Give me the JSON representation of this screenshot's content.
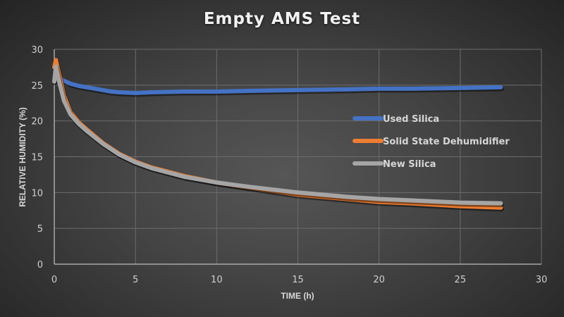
{
  "chart_data": {
    "type": "line",
    "title": "Empty AMS Test",
    "xlabel": "TIME (h)",
    "ylabel": "RELATIVE HUMIDITY (%)",
    "xlim": [
      0,
      30
    ],
    "ylim": [
      0,
      30
    ],
    "xticks": [
      0,
      5,
      10,
      15,
      20,
      25,
      30
    ],
    "yticks": [
      0,
      5,
      10,
      15,
      20,
      25,
      30
    ],
    "grid": true,
    "legend_position": "right-inside",
    "series": [
      {
        "name": "Used Silica",
        "color": "#4472c4",
        "x": [
          0.1,
          0.3,
          0.6,
          1,
          1.5,
          2,
          3,
          3.5,
          4,
          5,
          6,
          8,
          10,
          12,
          15,
          18,
          20,
          22,
          25,
          27.5
        ],
        "y": [
          26.8,
          26.0,
          25.6,
          25.2,
          24.9,
          24.7,
          24.3,
          24.1,
          24.0,
          23.9,
          24.0,
          24.1,
          24.1,
          24.2,
          24.3,
          24.4,
          24.5,
          24.5,
          24.6,
          24.7
        ]
      },
      {
        "name": "Solid State Dehumidifier",
        "color": "#ed7d31",
        "x": [
          0,
          0.1,
          0.3,
          0.6,
          1,
          1.5,
          2,
          3,
          4,
          5,
          6,
          8,
          10,
          12,
          15,
          18,
          20,
          22,
          25,
          27.5
        ],
        "y": [
          27.5,
          28.5,
          26.5,
          23.5,
          21.2,
          19.8,
          18.8,
          16.9,
          15.4,
          14.3,
          13.5,
          12.3,
          11.4,
          10.7,
          9.7,
          9.1,
          8.7,
          8.5,
          8.1,
          7.9
        ]
      },
      {
        "name": "New Silica",
        "color": "#a5a5a5",
        "x": [
          0,
          0.1,
          0.3,
          0.6,
          1,
          1.5,
          2,
          3,
          4,
          5,
          6,
          8,
          10,
          12,
          15,
          18,
          20,
          22,
          25,
          27.5
        ],
        "y": [
          25.5,
          27.6,
          25.5,
          22.8,
          20.9,
          19.6,
          18.6,
          16.8,
          15.3,
          14.2,
          13.4,
          12.2,
          11.4,
          10.8,
          10.0,
          9.4,
          9.1,
          8.9,
          8.6,
          8.5
        ]
      }
    ]
  }
}
